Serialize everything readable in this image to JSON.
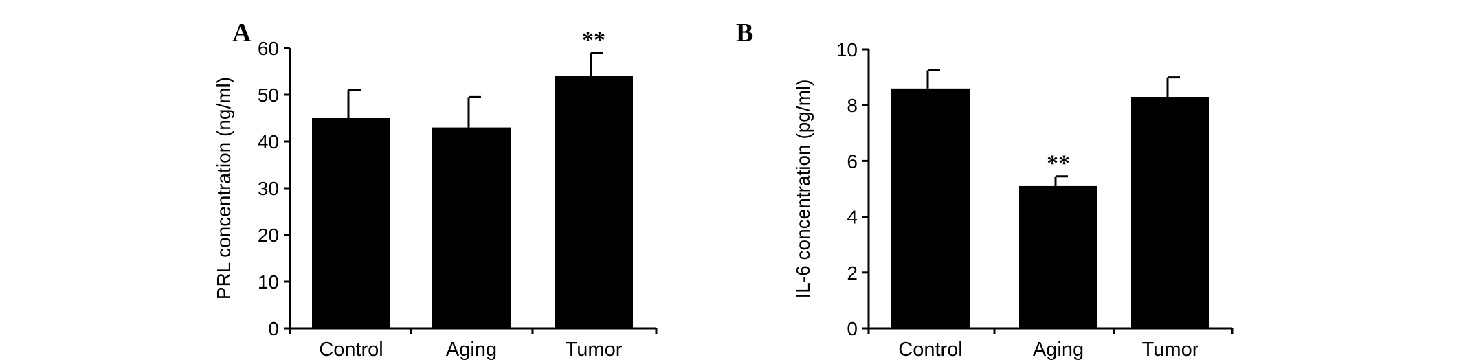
{
  "chart_data": [
    {
      "panel": "A",
      "type": "bar",
      "categories": [
        "Control",
        "Aging",
        "Tumor"
      ],
      "values": [
        45,
        43,
        54
      ],
      "errors": [
        6,
        6.5,
        5
      ],
      "significance": [
        "",
        "",
        "**"
      ],
      "ylabel": "PRL concentration (ng/ml)",
      "ylim": [
        0,
        60
      ],
      "yticks": [
        0,
        10,
        20,
        30,
        40,
        50,
        60
      ],
      "grid": false,
      "bar_color": "#000000"
    },
    {
      "panel": "B",
      "type": "bar",
      "categories": [
        "Control",
        "Aging",
        "Tumor"
      ],
      "values": [
        8.6,
        5.1,
        8.3
      ],
      "errors": [
        0.65,
        0.35,
        0.7
      ],
      "significance": [
        "",
        "**",
        ""
      ],
      "ylabel": "IL-6 concentration (pg/ml)",
      "ylim": [
        0,
        10
      ],
      "yticks": [
        0,
        2,
        4,
        6,
        8,
        10
      ],
      "grid": false,
      "bar_color": "#000000"
    }
  ]
}
